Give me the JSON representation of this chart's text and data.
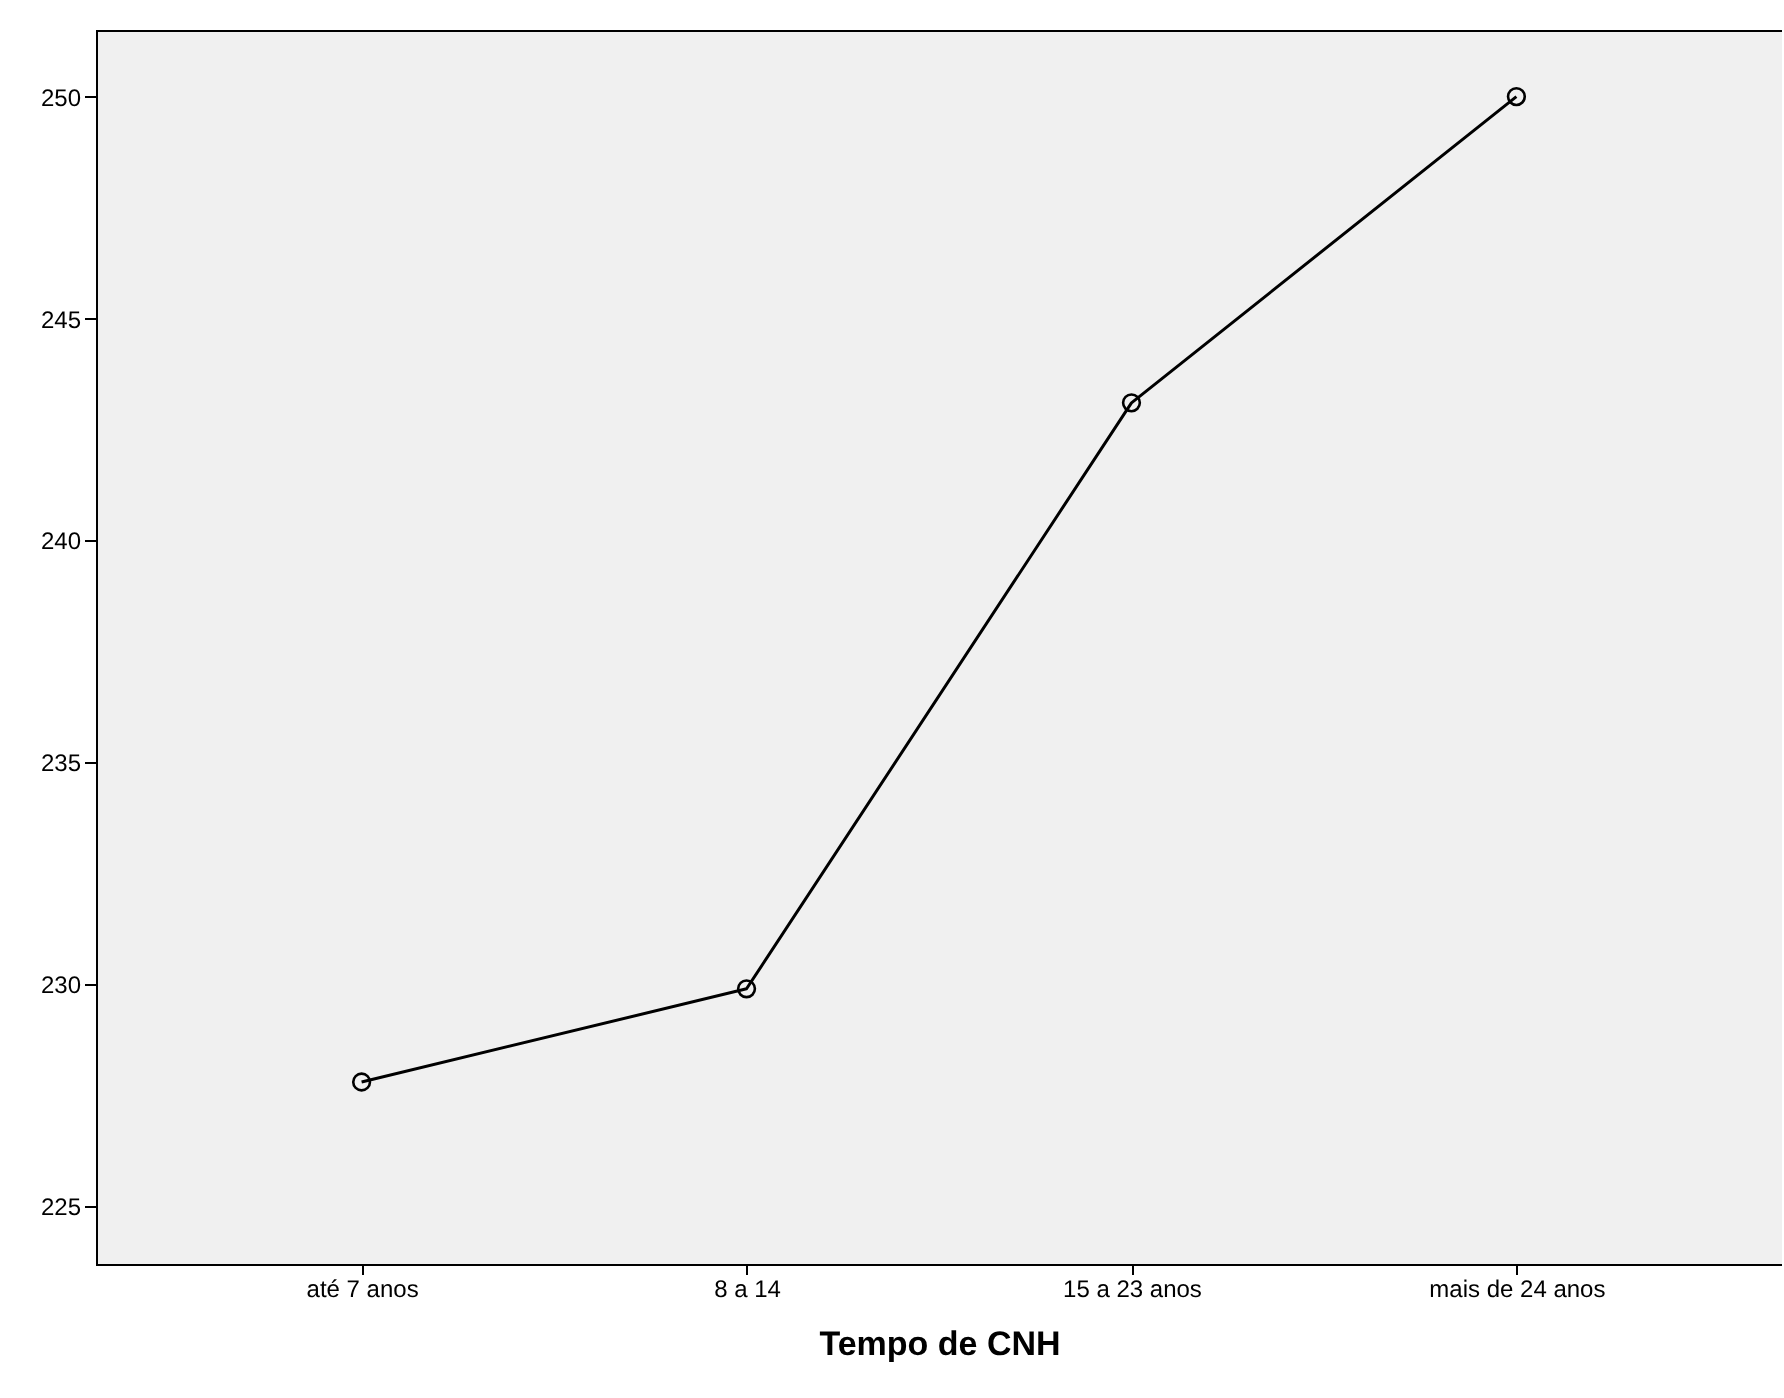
{
  "chart_data": {
    "type": "line",
    "xlabel": "Tempo de CNH",
    "categories": [
      "até 7 anos",
      "8 a 14",
      "15 a 23 anos",
      "mais de 24 anos"
    ],
    "series": [
      {
        "color": "#000000",
        "values": [
          227.8,
          229.9,
          243.1,
          250.0
        ]
      }
    ],
    "ylim": [
      223.7,
      251.5
    ],
    "yticks": [
      225,
      230,
      235,
      240,
      245,
      250
    ],
    "marker": "circle",
    "line_style": "solid",
    "grid": false
  }
}
